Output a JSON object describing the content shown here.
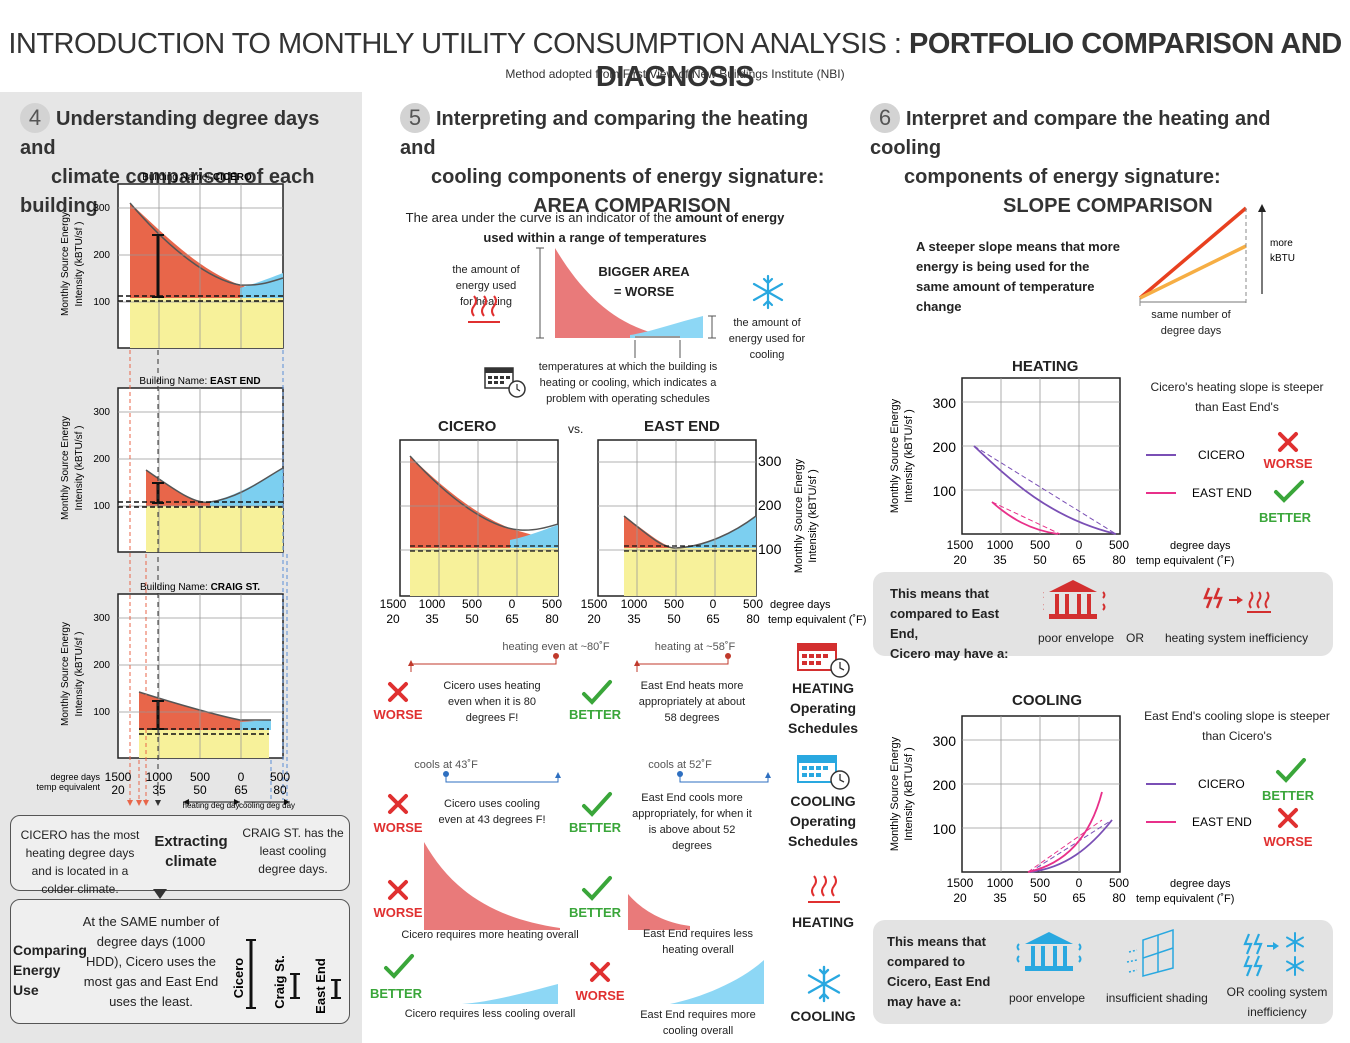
{
  "header": {
    "title_light": "INTRODUCTION TO MONTHLY UTILITY CONSUMPTION ANALYSIS :",
    "title_bold": "PORTFOLIO COMPARISON AND DIAGNOSIS",
    "subtitle": "Method adopted from First View of New Buildings Institute (NBI)"
  },
  "section4": {
    "num": "4",
    "heading_l1": "Understanding degree days and",
    "heading_l2": "climate comparison of each building",
    "ylabel_l1": "Monthly Source Energy",
    "ylabel_l2": "Intensity (kBTU/sf )",
    "charts": [
      {
        "name_prefix": "Building Name:",
        "name": "CICERO",
        "ticks": [
          "300",
          "200",
          "100"
        ]
      },
      {
        "name_prefix": "Building Name:",
        "name": "EAST END",
        "ticks": [
          "300",
          "200",
          "100"
        ]
      },
      {
        "name_prefix": "Building Name:",
        "name": "CRAIG ST.",
        "ticks": [
          "300",
          "200",
          "100"
        ]
      }
    ],
    "axis_label_dd": "degree days",
    "axis_label_temp": "temp equivalent",
    "dd_ticks": [
      "1500",
      "1000",
      "500",
      "0",
      "500"
    ],
    "temp_ticks": [
      "20",
      "35",
      "50",
      "65",
      "80"
    ],
    "heating_deg_day": "heating deg day",
    "cooling_deg_day": "cooling deg day",
    "climate_box": {
      "left_text": "CICERO has the most heating degree days and is located in a colder climate.",
      "center_l1": "Extracting",
      "center_l2": "climate",
      "right_text": "CRAIG ST. has the least cooling degree days."
    },
    "energy_box": {
      "label_l1": "Comparing",
      "label_l2": "Energy Use",
      "text": "At the SAME number of degree days (1000 HDD), Cicero uses the most gas and East End uses the least.",
      "bars": [
        "Cicero",
        "Craig St.",
        "East End"
      ]
    }
  },
  "section5": {
    "num": "5",
    "heading_l1": "Interpreting and comparing the heating and",
    "heading_l2": "cooling components of  energy signature:",
    "heading_l3": "AREA COMPARISON",
    "intro_normal": "The area under the curve is an indicator of the",
    "intro_bold_1": "amount of energy",
    "intro_bold_2": "used within a range of temperatures",
    "heating_amount": "the amount of energy used for heating",
    "bigger_l1": "BIGGER AREA",
    "bigger_l2": "= WORSE",
    "cooling_amount": "the amount of energy used for cooling",
    "temps_note": "temperatures at which the building is heating or cooling, which indicates a problem with operating schedules",
    "cicero": "CICERO",
    "vs": "vs.",
    "east_end": "EAST END",
    "ticks": [
      "300",
      "200",
      "100"
    ],
    "ylabel_l1": "Monthly Source Energy",
    "ylabel_l2": "Intensity (kBTU/sf )",
    "dd_ticks": [
      "1500",
      "1000",
      "500",
      "0",
      "500"
    ],
    "temp_ticks": [
      "20",
      "35",
      "50",
      "65",
      "80"
    ],
    "dd_label": "degree days",
    "temp_label": "temp equivalent (˚F)",
    "heating_80": "heating even at ~80˚F",
    "heating_58": "heating at ~58˚F",
    "cicero_heat_text": "Cicero uses heating even when it is 80 degrees F!",
    "east_heat_text": "East End heats more appropriately at about 58 degrees",
    "heating_sched_l1": "HEATING",
    "heating_sched_l2": "Operating",
    "heating_sched_l3": "Schedules",
    "cools_43": "cools at 43˚F",
    "cools_52": "cools at 52˚F",
    "cicero_cool_text": "Cicero uses cooling even at 43 degrees F!",
    "east_cool_text": "East End cools more appropriately, for when it is above about 52 degrees",
    "cooling_sched_l1": "COOLING",
    "cooling_sched_l2": "Operating",
    "cooling_sched_l3": "Schedules",
    "cicero_heat_overall": "Cicero requires more  heating overall",
    "east_heat_overall": "East End requires less heating overall",
    "heating": "HEATING",
    "cicero_cool_overall": "Cicero requires less cooling overall",
    "east_cool_overall": "East End requires more cooling overall",
    "cooling": "COOLING",
    "worse": "WORSE",
    "better": "BETTER"
  },
  "section6": {
    "num": "6",
    "heading_l1": "Interpret and compare the heating and cooling",
    "heading_l2": "components of  energy signature:",
    "heading_l3": "SLOPE COMPARISON",
    "steeper_text": "A steeper slope means that more energy is being used for the same amount of temperature change",
    "more_l1": "more",
    "more_l2": "kBTU",
    "same_number": "same number of degree days",
    "heating_title": "HEATING",
    "cooling_title": "COOLING",
    "ylabel_l1": "Monthly Source Energy",
    "ylabel_l2": "Intensity (kBTU/sf )",
    "ticks": [
      "300",
      "200",
      "100"
    ],
    "dd_ticks": [
      "1500",
      "1000",
      "500",
      "0",
      "500"
    ],
    "temp_ticks": [
      "20",
      "35",
      "50",
      "65",
      "80"
    ],
    "dd_label": "degree days",
    "temp_label": "temp equivalent (˚F)",
    "heating_note": "Cicero's heating slope is steeper than East End's",
    "cooling_note": "East End's cooling slope is steeper than Cicero's",
    "cicero": "CICERO",
    "east_end": "EAST END",
    "worse": "WORSE",
    "better": "BETTER",
    "heat_means_l1": "This means that",
    "heat_means_l2": "compared to East End,",
    "heat_means_l3": "Cicero may have a:",
    "poor_envelope": "poor envelope",
    "or": "OR",
    "heating_ineff": "heating system inefficiency",
    "cool_means_l1": "This means that",
    "cool_means_l2": "compared to",
    "cool_means_l3": "Cicero, East End",
    "cool_means_l4": "may have a:",
    "insufficient_shading": "insufficient shading",
    "or_cooling": "OR  cooling system inefficiency"
  },
  "colors": {
    "heat_fill": "#e8664a",
    "cool_fill": "#7ccff0",
    "base_fill": "#f7f19a",
    "area_red": "#e97a7a",
    "area_blue": "#8dd7f5",
    "cicero_line": "#7a4fb5",
    "east_line": "#e8308a",
    "worse_red": "#e03030",
    "better_green": "#3aa63a"
  }
}
